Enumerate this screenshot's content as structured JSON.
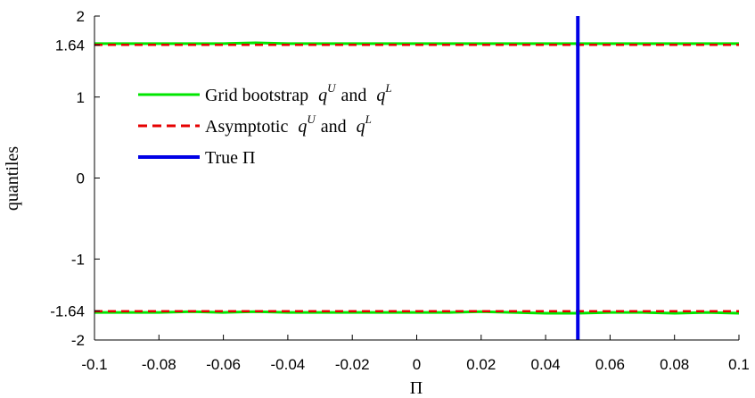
{
  "chart_data": {
    "type": "line",
    "title": "",
    "xlabel": "Π",
    "ylabel": "quantiles",
    "xlim": [
      -0.1,
      0.1
    ],
    "ylim": [
      -2,
      2
    ],
    "x_ticks": [
      -0.1,
      -0.08,
      -0.06,
      -0.04,
      -0.02,
      0,
      0.02,
      0.04,
      0.06,
      0.08,
      0.1
    ],
    "x_tick_labels": [
      "-0.1",
      "-0.08",
      "-0.06",
      "-0.04",
      "-0.02",
      "0",
      "0.02",
      "0.04",
      "0.06",
      "0.08",
      "0.1"
    ],
    "y_ticks": [
      -2,
      -1.64,
      -1,
      0,
      1,
      1.64,
      2
    ],
    "y_tick_labels": [
      "-2",
      "-1.64",
      "-1",
      "0",
      "1",
      "1.64",
      "2"
    ],
    "grid": false,
    "legend_position": "top-left",
    "series": [
      {
        "name": "Grid bootstrap q^U and q^L",
        "legend_text": "Grid bootstrap",
        "color": "#00e600",
        "style": "solid",
        "upper": {
          "x": [
            -0.1,
            -0.09,
            -0.08,
            -0.07,
            -0.06,
            -0.05,
            -0.04,
            -0.03,
            -0.02,
            -0.01,
            0,
            0.01,
            0.02,
            0.03,
            0.04,
            0.05,
            0.06,
            0.07,
            0.08,
            0.09,
            0.1
          ],
          "y": [
            1.66,
            1.66,
            1.66,
            1.66,
            1.66,
            1.67,
            1.66,
            1.66,
            1.66,
            1.66,
            1.66,
            1.66,
            1.66,
            1.66,
            1.66,
            1.66,
            1.66,
            1.66,
            1.66,
            1.66,
            1.66
          ]
        },
        "lower": {
          "x": [
            -0.1,
            -0.09,
            -0.08,
            -0.07,
            -0.06,
            -0.05,
            -0.04,
            -0.03,
            -0.02,
            -0.01,
            0,
            0.01,
            0.02,
            0.03,
            0.04,
            0.05,
            0.06,
            0.07,
            0.08,
            0.09,
            0.1
          ],
          "y": [
            -1.66,
            -1.66,
            -1.66,
            -1.65,
            -1.66,
            -1.65,
            -1.66,
            -1.66,
            -1.66,
            -1.66,
            -1.66,
            -1.66,
            -1.65,
            -1.66,
            -1.67,
            -1.67,
            -1.66,
            -1.66,
            -1.67,
            -1.66,
            -1.67
          ]
        }
      },
      {
        "name": "Asymptotic q^U and q^L",
        "legend_text": "Asymptotic",
        "color": "#e60000",
        "style": "dashed",
        "upper": {
          "x": [
            -0.1,
            0.1
          ],
          "y": [
            1.645,
            1.645
          ]
        },
        "lower": {
          "x": [
            -0.1,
            0.1
          ],
          "y": [
            -1.645,
            -1.645
          ]
        }
      },
      {
        "name": "True Π",
        "legend_text": "True Π",
        "color": "#0000e6",
        "style": "solid",
        "vertical_x": 0.05
      }
    ],
    "legend_math": {
      "q": "q",
      "sup_u": "U",
      "sup_l": "L",
      "and": "and"
    }
  }
}
